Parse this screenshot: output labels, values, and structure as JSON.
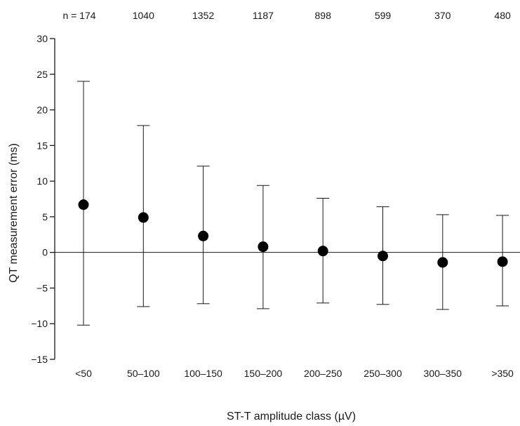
{
  "chart_data": {
    "type": "scatter",
    "title": "",
    "xlabel": "ST-T amplitude class (µV)",
    "ylabel": "QT measurement error (ms)",
    "ylim": [
      -15,
      30
    ],
    "yticks": [
      -15,
      -10,
      -5,
      0,
      5,
      10,
      15,
      20,
      25,
      30
    ],
    "ytick_labels": [
      "−15",
      "−10",
      "−5",
      "0",
      "5",
      "10",
      "15",
      "20",
      "25",
      "30"
    ],
    "categories": [
      "<50",
      "50–100",
      "100–150",
      "150–200",
      "200–250",
      "250–300",
      "300–350",
      ">350"
    ],
    "n_labels": [
      "n = 174",
      "1040",
      "1352",
      "1187",
      "898",
      "599",
      "370",
      "480"
    ],
    "mean": [
      6.7,
      4.9,
      2.3,
      0.8,
      0.2,
      -0.5,
      -1.4,
      -1.3
    ],
    "upper": [
      24.0,
      17.8,
      12.1,
      9.4,
      7.6,
      6.4,
      5.3,
      5.2
    ],
    "lower": [
      -10.2,
      -7.6,
      -7.2,
      -7.9,
      -7.1,
      -7.3,
      -8.0,
      -7.5
    ],
    "grid": false,
    "zero_line": true
  }
}
